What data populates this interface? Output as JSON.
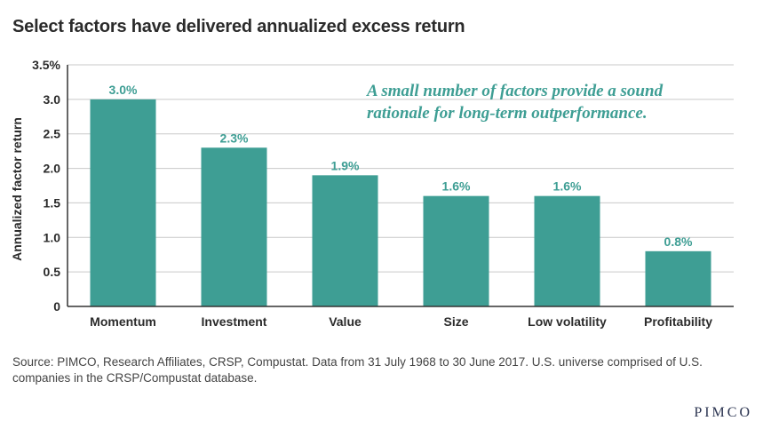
{
  "title": "Select factors have delivered annualized excess return",
  "source": "Source: PIMCO, Research Affiliates, CRSP, Compustat. Data from 31 July 1968 to 30 June 2017. U.S. universe comprised of U.S. companies in the CRSP/Compustat database.",
  "logo": "PIMCO",
  "colors": {
    "bar": "#3e9e94",
    "label": "#3e9e94",
    "annotation": "#3e9e94",
    "grid": "#c9c9c9",
    "axis": "#333333",
    "text": "#2b2b2b"
  },
  "chart_data": {
    "type": "bar",
    "title": "Select factors have delivered annualized excess return",
    "xlabel": "",
    "ylabel": "Annualized factor return",
    "categories": [
      "Momentum",
      "Investment",
      "Value",
      "Size",
      "Low volatility",
      "Profitability"
    ],
    "values": [
      3.0,
      2.3,
      1.9,
      1.6,
      1.6,
      0.8
    ],
    "data_labels": [
      "3.0%",
      "2.3%",
      "1.9%",
      "1.6%",
      "1.6%",
      "0.8%"
    ],
    "ylim": [
      0,
      3.5
    ],
    "yticks": [
      0,
      0.5,
      1.0,
      1.5,
      2.0,
      2.5,
      3.0,
      3.5
    ],
    "ytick_labels": [
      "0",
      "0.5",
      "1.0",
      "1.5",
      "2.0",
      "2.5",
      "3.0",
      "3.5%"
    ],
    "grid": true,
    "legend": "none",
    "annotation": [
      "A small number of factors provide a sound",
      "rationale for long-term outperformance."
    ]
  }
}
